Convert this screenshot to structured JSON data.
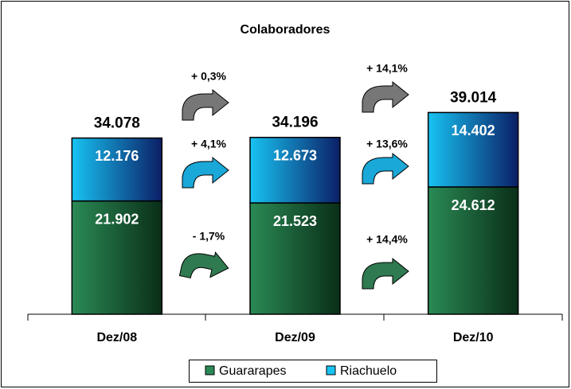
{
  "chart_data": {
    "type": "stacked-bar",
    "title": "Colaboradores",
    "categories": [
      "Dez/08",
      "Dez/09",
      "Dez/10"
    ],
    "series": [
      {
        "name": "Guararapes",
        "color": "#2a8a55",
        "values": [
          21902,
          21523,
          24612
        ],
        "value_labels": [
          "21.902",
          "21.523",
          "24.612"
        ]
      },
      {
        "name": "Riachuelo",
        "color": "#17c3f2",
        "values": [
          12176,
          12673,
          14402
        ],
        "value_labels": [
          "12.176",
          "12.673",
          "14.402"
        ]
      }
    ],
    "totals": {
      "values": [
        34078,
        34196,
        39014
      ],
      "value_labels": [
        "34.078",
        "34.196",
        "39.014"
      ]
    },
    "annotations": [
      "+ 0,3%",
      "+ 4,1%",
      "- 1,7%",
      "+ 14,1%",
      "+ 13,6%",
      "+ 14,4%"
    ],
    "ylim": [
      0,
      44000
    ],
    "legend": "bottom"
  }
}
